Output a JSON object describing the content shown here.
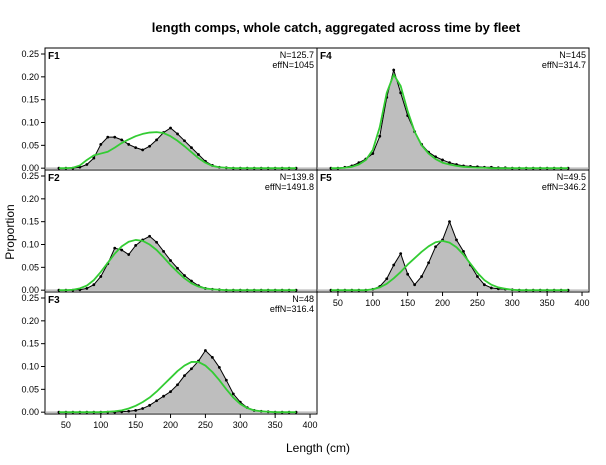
{
  "chart_data": {
    "type": "area",
    "title": "length comps, whole catch, aggregated across time by fleet",
    "xlabel": "Length (cm)",
    "ylabel": "Proportion",
    "xlim": [
      20,
      410
    ],
    "ylim": [
      -0.004,
      0.25
    ],
    "x_ticks": [
      50,
      100,
      150,
      200,
      250,
      300,
      350,
      400
    ],
    "y_ticks": [
      0.0,
      0.05,
      0.1,
      0.15,
      0.2,
      0.25
    ],
    "y_tick_labels": [
      "0.00",
      "0.05",
      "0.10",
      "0.15",
      "0.20",
      "0.25"
    ],
    "length_bins": [
      40,
      50,
      60,
      70,
      80,
      90,
      100,
      110,
      120,
      130,
      140,
      150,
      160,
      170,
      180,
      190,
      200,
      210,
      220,
      230,
      240,
      250,
      260,
      270,
      280,
      290,
      300,
      310,
      320,
      330,
      340,
      350,
      360,
      370,
      380
    ],
    "series_styles": {
      "observed": {
        "fill": "#bebebe",
        "line": "#000000"
      },
      "expected": {
        "line": "#33cc33"
      }
    },
    "panels": [
      {
        "label": "F1",
        "n_text": "N=125.7",
        "effn_text": "effN=1045",
        "observed": [
          0,
          0,
          0,
          0.002,
          0.008,
          0.022,
          0.052,
          0.068,
          0.068,
          0.062,
          0.052,
          0.045,
          0.04,
          0.048,
          0.062,
          0.078,
          0.088,
          0.075,
          0.06,
          0.045,
          0.03,
          0.015,
          0.006,
          0.002,
          0.001,
          0,
          0,
          0,
          0,
          0,
          0,
          0,
          0,
          0,
          0
        ],
        "expected": [
          0,
          0,
          0.001,
          0.006,
          0.018,
          0.028,
          0.032,
          0.036,
          0.045,
          0.055,
          0.063,
          0.07,
          0.075,
          0.078,
          0.079,
          0.077,
          0.07,
          0.06,
          0.048,
          0.035,
          0.022,
          0.012,
          0.005,
          0.002,
          0.001,
          0,
          0,
          0,
          0,
          0,
          0,
          0,
          0,
          0,
          0
        ]
      },
      {
        "label": "F2",
        "n_text": "N=139.8",
        "effn_text": "effN=1491.8",
        "observed": [
          0,
          0,
          0,
          0.001,
          0.004,
          0.012,
          0.03,
          0.058,
          0.092,
          0.088,
          0.078,
          0.098,
          0.11,
          0.118,
          0.105,
          0.085,
          0.065,
          0.048,
          0.032,
          0.02,
          0.01,
          0.004,
          0.002,
          0.001,
          0,
          0,
          0,
          0,
          0,
          0,
          0,
          0,
          0,
          0,
          0
        ],
        "expected": [
          0,
          0,
          0.001,
          0.004,
          0.01,
          0.022,
          0.04,
          0.06,
          0.08,
          0.096,
          0.106,
          0.11,
          0.108,
          0.1,
          0.088,
          0.072,
          0.055,
          0.04,
          0.026,
          0.015,
          0.008,
          0.004,
          0.002,
          0.001,
          0,
          0,
          0,
          0,
          0,
          0,
          0,
          0,
          0,
          0,
          0
        ]
      },
      {
        "label": "F3",
        "n_text": "N=48",
        "effn_text": "effN=316.4",
        "observed": [
          0,
          0,
          0,
          0,
          0,
          0,
          0,
          0,
          0,
          0.001,
          0.002,
          0.004,
          0.008,
          0.015,
          0.025,
          0.035,
          0.045,
          0.06,
          0.08,
          0.095,
          0.112,
          0.135,
          0.12,
          0.098,
          0.07,
          0.04,
          0.022,
          0.01,
          0.004,
          0.002,
          0.001,
          0,
          0,
          0,
          0
        ],
        "expected": [
          0,
          0,
          0,
          0,
          0,
          0,
          0,
          0.001,
          0.002,
          0.004,
          0.008,
          0.014,
          0.022,
          0.032,
          0.045,
          0.06,
          0.075,
          0.09,
          0.102,
          0.11,
          0.11,
          0.102,
          0.088,
          0.07,
          0.05,
          0.032,
          0.018,
          0.009,
          0.004,
          0.002,
          0.001,
          0,
          0,
          0,
          0
        ]
      },
      {
        "label": "F4",
        "n_text": "N=145",
        "effn_text": "effN=314.7",
        "observed": [
          0,
          0,
          0.002,
          0.005,
          0.012,
          0.02,
          0.032,
          0.07,
          0.155,
          0.215,
          0.165,
          0.115,
          0.08,
          0.052,
          0.035,
          0.025,
          0.018,
          0.012,
          0.008,
          0.005,
          0.004,
          0.003,
          0.002,
          0.002,
          0.001,
          0.001,
          0,
          0,
          0,
          0,
          0,
          0,
          0,
          0,
          0
        ],
        "expected": [
          0,
          0,
          0.001,
          0.003,
          0.008,
          0.018,
          0.04,
          0.09,
          0.165,
          0.205,
          0.18,
          0.125,
          0.08,
          0.05,
          0.032,
          0.02,
          0.012,
          0.008,
          0.005,
          0.003,
          0.002,
          0.001,
          0.001,
          0,
          0,
          0,
          0,
          0,
          0,
          0,
          0,
          0,
          0,
          0,
          0
        ]
      },
      {
        "label": "F5",
        "n_text": "N=49.5",
        "effn_text": "effN=346.2",
        "observed": [
          0,
          0,
          0,
          0,
          0,
          0,
          0.002,
          0.008,
          0.025,
          0.055,
          0.08,
          0.035,
          0.012,
          0.03,
          0.06,
          0.095,
          0.11,
          0.15,
          0.11,
          0.085,
          0.055,
          0.03,
          0.012,
          0.005,
          0.003,
          0.002,
          0.001,
          0,
          0,
          0,
          0,
          0,
          0,
          0,
          0
        ],
        "expected": [
          0,
          0,
          0,
          0,
          0,
          0,
          0.002,
          0.006,
          0.014,
          0.026,
          0.04,
          0.056,
          0.07,
          0.084,
          0.096,
          0.105,
          0.108,
          0.104,
          0.094,
          0.078,
          0.058,
          0.038,
          0.022,
          0.012,
          0.006,
          0.003,
          0.001,
          0,
          0,
          0,
          0,
          0,
          0,
          0,
          0
        ]
      }
    ]
  }
}
